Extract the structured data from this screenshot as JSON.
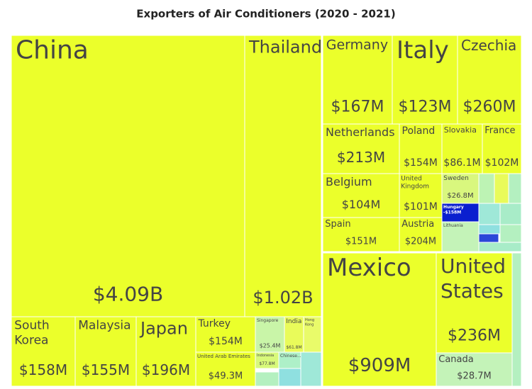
{
  "chart_data": {
    "type": "treemap",
    "title": "Exporters of Air Conditioners (2020 - 2021)",
    "categories": [
      "China",
      "Thailand",
      "South Korea",
      "Malaysia",
      "Japan",
      "Turkey",
      "United Arab Emirates",
      "Singapore",
      "India",
      "Hong Kong",
      "Indonesia",
      "Chinese...",
      "Germany",
      "Italy",
      "Czechia",
      "Netherlands",
      "Poland",
      "Slovakia",
      "France",
      "Belgium",
      "United Kingdom",
      "Sweden",
      "Hungary",
      "Lithuania",
      "Spain",
      "Austria",
      "Mexico",
      "United States",
      "Canada"
    ],
    "values": [
      4090000000,
      1020000000,
      158000000,
      155000000,
      196000000,
      154000000,
      49300000,
      25400000,
      61800000,
      null,
      77800000,
      null,
      167000000,
      123000000,
      260000000,
      213000000,
      154000000,
      86100000,
      102000000,
      104000000,
      101000000,
      26800000,
      -158000000,
      null,
      151000000,
      204000000,
      909000000,
      236000000,
      28700000
    ],
    "value_labels": [
      "$4.09B",
      "$1.02B",
      "$158M",
      "$155M",
      "$196M",
      "$154M",
      "$49.3M",
      "$25.4M",
      "$61.8M",
      null,
      "$77.8M",
      null,
      "$167M",
      "$123M",
      "$260M",
      "$213M",
      "$154M",
      "$86.1M",
      "$102M",
      "$104M",
      "$101M",
      "$26.8M",
      "-$158M",
      null,
      "$151M",
      "$204M",
      "$909M",
      "$236M",
      "$28.7M"
    ],
    "colors": [
      "#ebff2b",
      "#ebff2b",
      "#ebff2b",
      "#ebff2b",
      "#ebff2b",
      "#ebff2b",
      "#ebff2b",
      "#c9f5a8",
      "#e9fb5a",
      "#e9fb6a",
      "#d8f97a",
      "#aef0c8",
      "#ebff2b",
      "#ebff2b",
      "#ebff2b",
      "#ebff2b",
      "#ebff2b",
      "#ebff2b",
      "#ebff2b",
      "#ebff2b",
      "#ebff2b",
      "#d9f77e",
      "#0a1fcf",
      "#c4f3b8",
      "#ebff2b",
      "#ebff2b",
      "#ebff2b",
      "#ebff2b",
      "#c4f3b8"
    ]
  }
}
